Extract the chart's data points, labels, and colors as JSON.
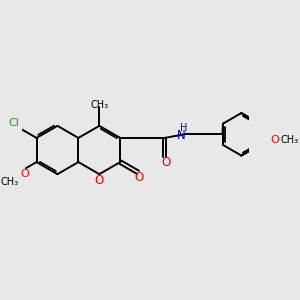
{
  "bg_color": "#e8e8e8",
  "bond_color": "#000000",
  "cl_color": "#00aa00",
  "o_color": "#ff0000",
  "n_color": "#0000cc",
  "bond_lw": 1.4,
  "dbl_lw": 1.3,
  "figsize": [
    3.0,
    3.0
  ],
  "dpi": 100,
  "font_size": 7.5,
  "xlim": [
    -2.8,
    5.2
  ],
  "ylim": [
    -2.2,
    2.2
  ]
}
